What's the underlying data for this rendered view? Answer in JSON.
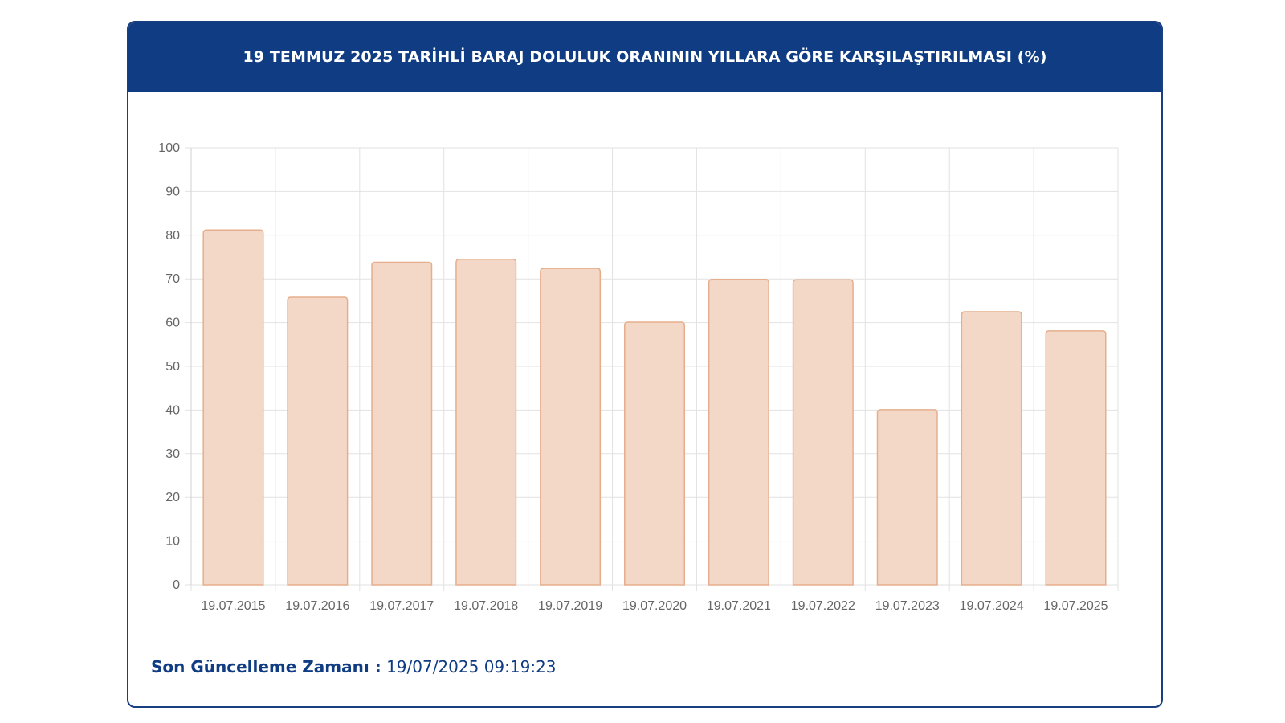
{
  "header": {
    "title": "19 TEMMUZ 2025 TARİHLİ BARAJ DOLULUK ORANININ YILLARA GÖRE KARŞILAŞTIRILMASI (%)"
  },
  "footer": {
    "label": "Son Güncelleme Zamanı :",
    "value": "19/07/2025 09:19:23"
  },
  "colors": {
    "header_bg": "#0f3c82",
    "bar_fill": "#f4d8c7",
    "bar_stroke": "#e6ae8c",
    "grid": "#e2e2e2",
    "text_primary": "#0f3c82"
  },
  "chart_data": {
    "type": "bar",
    "title": "19 TEMMUZ 2025 TARİHLİ BARAJ DOLULUK ORANININ YILLARA GÖRE KARŞILAŞTIRILMASI (%)",
    "categories": [
      "19.07.2015",
      "19.07.2016",
      "19.07.2017",
      "19.07.2018",
      "19.07.2019",
      "19.07.2020",
      "19.07.2021",
      "19.07.2022",
      "19.07.2023",
      "19.07.2024",
      "19.07.2025"
    ],
    "values": [
      81.2,
      65.8,
      73.8,
      74.5,
      72.4,
      60.1,
      69.9,
      69.8,
      40.1,
      62.5,
      58.1
    ],
    "ylim": [
      0,
      100
    ],
    "yticks": [
      "0",
      "10",
      "20",
      "30",
      "40",
      "50",
      "60",
      "70",
      "80",
      "90",
      "100"
    ],
    "xlabel": "",
    "ylabel": "",
    "grid": true,
    "legend": "none"
  }
}
